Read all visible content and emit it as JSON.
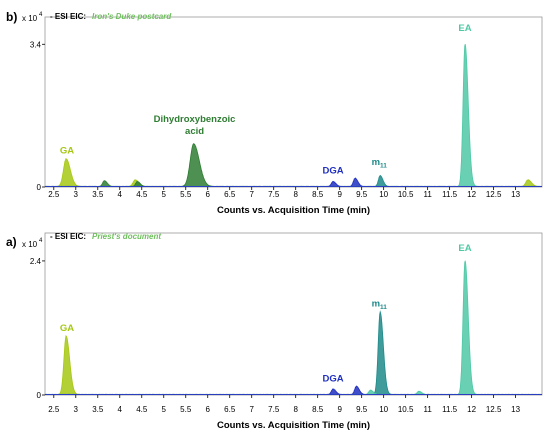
{
  "chart_data": [
    {
      "type": "line",
      "panel_label": "b)",
      "title": "- ESI EIC:",
      "subtitle": "Iron's Duke postcard",
      "ylabel_scale": "x 10",
      "ylabel_exponent": "4",
      "xlabel": "Counts vs. Acquisition Time (min)",
      "xlim": [
        2.3,
        13.6
      ],
      "ylim": [
        0,
        4.05
      ],
      "yticks": [
        {
          "value": 0,
          "label": "0"
        },
        {
          "value": 3.4,
          "label": "3.4"
        }
      ],
      "xticks": [
        "2.5",
        "3",
        "3.5",
        "4",
        "4.5",
        "5",
        "5.5",
        "6",
        "6.5",
        "7",
        "7.5",
        "8",
        "8.5",
        "9",
        "9.5",
        "10",
        "10.5",
        "11",
        "11.5",
        "12",
        "12.5",
        "13"
      ],
      "series": [
        {
          "color": "#a6c814",
          "peaks": [
            {
              "x": 2.78,
              "h": 0.66,
              "w": 0.06
            },
            {
              "x": 4.35,
              "h": 0.16,
              "w": 0.05
            },
            {
              "x": 13.28,
              "h": 0.16,
              "w": 0.05
            }
          ]
        },
        {
          "color": "#2e7d32",
          "peaks": [
            {
              "x": 5.68,
              "h": 1.02,
              "w": 0.08
            },
            {
              "x": 3.65,
              "h": 0.14,
              "w": 0.04
            },
            {
              "x": 4.4,
              "h": 0.12,
              "w": 0.04
            }
          ]
        },
        {
          "color": "#1f2fbf",
          "peaks": [
            {
              "x": 8.85,
              "h": 0.12,
              "w": 0.04
            },
            {
              "x": 9.35,
              "h": 0.2,
              "w": 0.04
            }
          ]
        },
        {
          "color": "#1f8a8a",
          "peaks": [
            {
              "x": 9.92,
              "h": 0.26,
              "w": 0.04
            }
          ]
        },
        {
          "color": "#4fc8a6",
          "peaks": [
            {
              "x": 11.85,
              "h": 3.4,
              "w": 0.045
            }
          ]
        }
      ],
      "annotations": [
        {
          "text": "GA",
          "x": 2.8,
          "y": 0.8,
          "color": "#a6c814"
        },
        {
          "text": "Dihydroxybenzoic",
          "text2": "acid",
          "x": 5.7,
          "y": 1.55,
          "color": "#2e7d32"
        },
        {
          "text": "DGA",
          "x": 8.85,
          "y": 0.32,
          "color": "#1f2fbf"
        },
        {
          "text": "m",
          "sub": "11",
          "x": 9.9,
          "y": 0.52,
          "color": "#1f8a8a"
        },
        {
          "text": "EA",
          "x": 11.85,
          "y": 3.72,
          "color": "#4fc8a6"
        }
      ]
    },
    {
      "type": "line",
      "panel_label": "a)",
      "title": "- ESI EIC:",
      "subtitle": "Priest's document",
      "ylabel_scale": "x 10",
      "ylabel_exponent": "4",
      "xlabel": "Counts vs. Acquisition Time (min)",
      "xlim": [
        2.3,
        13.6
      ],
      "ylim": [
        0,
        2.9
      ],
      "yticks": [
        {
          "value": 0,
          "label": "0"
        },
        {
          "value": 2.4,
          "label": "2.4"
        }
      ],
      "xticks": [
        "2.5",
        "3",
        "3.5",
        "4",
        "4.5",
        "5",
        "5.5",
        "6",
        "6.5",
        "7",
        "7.5",
        "8",
        "8.5",
        "9",
        "9.5",
        "10",
        "10.5",
        "11",
        "11.5",
        "12",
        "12.5",
        "13"
      ],
      "series": [
        {
          "color": "#a6c814",
          "peaks": [
            {
              "x": 2.78,
              "h": 1.05,
              "w": 0.05
            }
          ]
        },
        {
          "color": "#2e7d32",
          "peaks": []
        },
        {
          "color": "#1f2fbf",
          "peaks": [
            {
              "x": 8.85,
              "h": 0.1,
              "w": 0.04
            },
            {
              "x": 9.38,
              "h": 0.15,
              "w": 0.04
            }
          ]
        },
        {
          "color": "#1f8a8a",
          "peaks": [
            {
              "x": 9.92,
              "h": 1.48,
              "w": 0.045
            }
          ]
        },
        {
          "color": "#4fc8a6",
          "peaks": [
            {
              "x": 11.85,
              "h": 2.4,
              "w": 0.045
            },
            {
              "x": 9.7,
              "h": 0.08,
              "w": 0.04
            },
            {
              "x": 10.8,
              "h": 0.06,
              "w": 0.04
            }
          ]
        }
      ],
      "annotations": [
        {
          "text": "GA",
          "x": 2.8,
          "y": 1.15,
          "color": "#a6c814"
        },
        {
          "text": "DGA",
          "x": 8.85,
          "y": 0.24,
          "color": "#1f2fbf"
        },
        {
          "text": "m",
          "sub": "11",
          "x": 9.9,
          "y": 1.58,
          "color": "#1f8a8a"
        },
        {
          "text": "EA",
          "x": 11.85,
          "y": 2.58,
          "color": "#4fc8a6"
        }
      ]
    }
  ]
}
